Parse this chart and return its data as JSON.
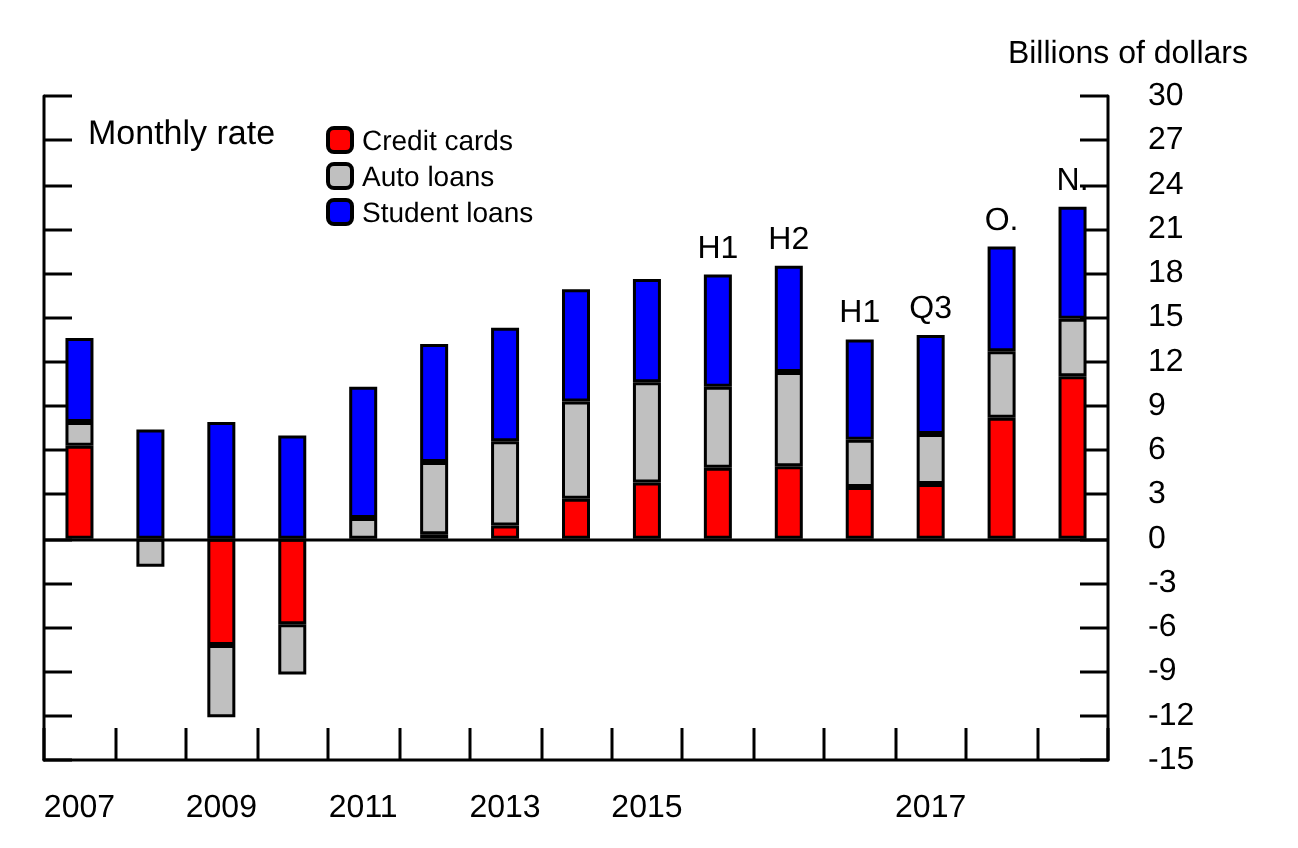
{
  "chart_data": {
    "type": "bar",
    "stacked": true,
    "ylabel": "Billions of dollars",
    "legend_title": "Monthly rate",
    "legend": "top left",
    "grid": false,
    "categories": [
      "2007",
      null,
      "2009",
      null,
      "2011",
      null,
      "2013",
      null,
      "2015",
      null,
      null,
      null,
      "2017",
      null,
      null
    ],
    "series": [
      {
        "name": "Credit cards",
        "color": "#ff0000",
        "values": [
          6.3,
          null,
          -7.2,
          -5.8,
          null,
          0.3,
          0.9,
          2.7,
          3.8,
          4.8,
          4.9,
          3.5,
          3.7,
          8.2,
          11.0
        ]
      },
      {
        "name": "Auto loans",
        "color": "#c0c0c0",
        "values": [
          1.6,
          -1.9,
          -4.9,
          -3.4,
          1.4,
          4.9,
          5.7,
          6.6,
          6.8,
          5.5,
          6.4,
          3.2,
          3.4,
          4.5,
          3.9
        ]
      },
      {
        "name": "Student loans",
        "color": "#0000ff",
        "values": [
          5.7,
          7.4,
          7.9,
          7.0,
          8.9,
          8.0,
          7.7,
          7.6,
          7.0,
          7.6,
          7.2,
          6.8,
          6.7,
          7.1,
          7.6
        ],
        "value_labels": [
          null,
          null,
          null,
          null,
          null,
          null,
          null,
          null,
          null,
          "H1",
          "H2",
          "H1",
          "Q3",
          "O.",
          "N."
        ]
      }
    ],
    "ylim": [
      -15,
      30
    ],
    "yticks": [
      -15,
      -12,
      -9,
      -6,
      -3,
      0,
      3,
      6,
      9,
      12,
      15,
      18,
      21,
      24,
      27,
      30
    ],
    "ref_lines": [
      {
        "axis": "y",
        "value": 0,
        "color": "#000000"
      }
    ]
  }
}
